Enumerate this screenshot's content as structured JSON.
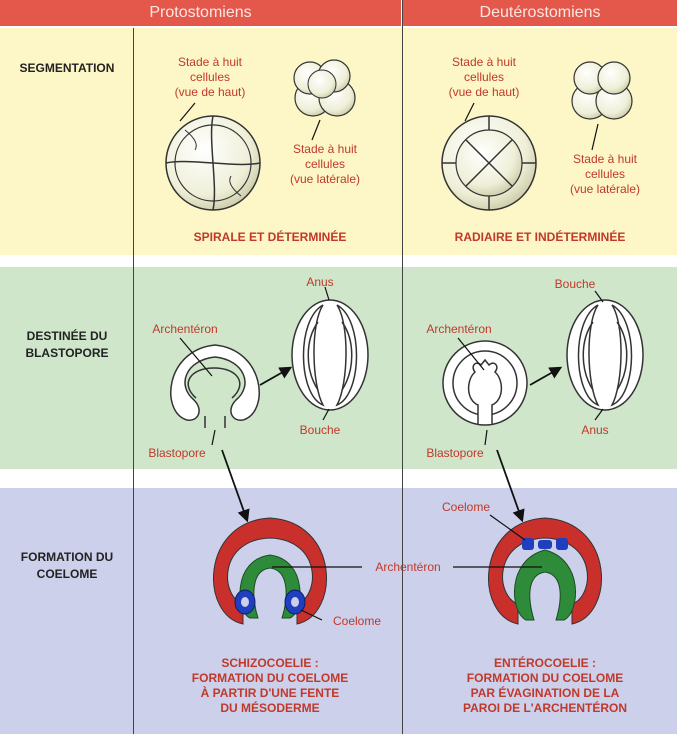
{
  "headers": {
    "left": "Protostomiens",
    "right": "Deutérostomiens"
  },
  "rows": {
    "segmentation": "SEGMENTATION",
    "blastopore_1": "DESTINÉE DU",
    "blastopore_2": "BLASTOPORE",
    "coelome_1": "FORMATION DU",
    "coelome_2": "COELOME"
  },
  "segmentation": {
    "proto": {
      "top_view_1": "Stade à huit",
      "top_view_2": "cellules",
      "top_view_3": "(vue de haut)",
      "side_view_1": "Stade à huit",
      "side_view_2": "cellules",
      "side_view_3": "(vue latérale)",
      "caption": "SPIRALE ET DÉTERMINÉE"
    },
    "deut": {
      "top_view_1": "Stade à huit",
      "top_view_2": "cellules",
      "top_view_3": "(vue de haut)",
      "side_view_1": "Stade à huit",
      "side_view_2": "cellules",
      "side_view_3": "(vue latérale)",
      "caption": "RADIAIRE ET INDÉTERMINÉE"
    }
  },
  "blastopore": {
    "proto": {
      "archenteron": "Archentéron",
      "blastopore": "Blastopore",
      "anus": "Anus",
      "bouche": "Bouche"
    },
    "deut": {
      "archenteron": "Archentéron",
      "blastopore": "Blastopore",
      "bouche": "Bouche",
      "anus": "Anus"
    }
  },
  "coelome": {
    "archenteron": "Archentéron",
    "proto": {
      "coelome": "Coelome",
      "caption_1": "SCHIZOCOELIE :",
      "caption_2": "FORMATION DU COELOME",
      "caption_3": "À PARTIR D'UNE FENTE",
      "caption_4": "DU MÉSODERME"
    },
    "deut": {
      "coelome": "Coelome",
      "caption_1": "ENTÉROCOELIE :",
      "caption_2": "FORMATION DU COELOME",
      "caption_3": "PAR ÉVAGINATION DE LA",
      "caption_4": "PAROI DE L'ARCHENTÉRON"
    }
  },
  "colors": {
    "header": "#e4574b",
    "band_segmentation": "#fdf6c6",
    "band_blastopore": "#cfe6cb",
    "band_coelome": "#ccd0ea",
    "label_red": "#c0392b",
    "ectoderm": "#c9302c",
    "endoderm": "#2e8b3a",
    "mesoderm": "#1f3fbf"
  }
}
